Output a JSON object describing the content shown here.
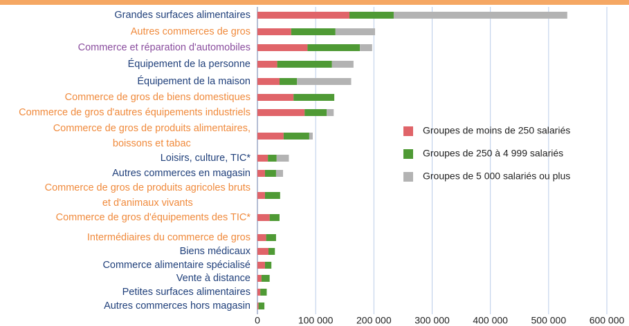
{
  "chart_data": {
    "type": "stacked_barh",
    "categories": [
      "Grandes surfaces alimentaires",
      "Autres commerces de gros",
      "Commerce et réparation d'automobiles",
      "Équipement de la personne",
      "Équipement de la maison",
      "Commerce de gros de biens domestiques",
      "Commerce de gros d'autres équipements industriels",
      "Commerce de gros de produits alimentaires,\nboissons et tabac",
      "Loisirs, culture, TIC*",
      "Autres commerces en magasin",
      "Commerce de gros de produits agricoles bruts\net d'animaux vivants",
      "Commerce de gros d'équipements des TIC*",
      "Intermédiaires du commerce de gros",
      "Biens médicaux",
      "Commerce alimentaire spécialisé",
      "Vente à distance",
      "Petites surfaces alimentaires",
      "Autres commerces hors magasin"
    ],
    "label_colors": [
      "#1f3f7a",
      "#f08a3c",
      "#8a4d9e",
      "#1f3f7a",
      "#1f3f7a",
      "#f08a3c",
      "#f08a3c",
      "#f08a3c",
      "#1f3f7a",
      "#1f3f7a",
      "#f08a3c",
      "#f08a3c",
      "#f08a3c",
      "#1f3f7a",
      "#1f3f7a",
      "#1f3f7a",
      "#1f3f7a",
      "#1f3f7a"
    ],
    "series": [
      {
        "name": "Groupes de moins de 250 salariés",
        "color": "#e06469",
        "values": [
          158000,
          58000,
          86000,
          34000,
          38000,
          62000,
          81000,
          45000,
          18000,
          13000,
          13000,
          21000,
          15000,
          19000,
          13000,
          7000,
          5000,
          2000
        ]
      },
      {
        "name": "Groupes de 250 à 4 999 salariés",
        "color": "#4f9a35",
        "values": [
          76000,
          76000,
          90000,
          94000,
          30000,
          70000,
          38000,
          44000,
          15000,
          19000,
          26000,
          17000,
          17000,
          11000,
          11000,
          14000,
          11000,
          10000
        ]
      },
      {
        "name": "Groupes de 5 000 salariés ou plus",
        "color": "#b3b3b3",
        "values": [
          298000,
          68000,
          21000,
          37000,
          93000,
          0,
          12000,
          6000,
          21000,
          12000,
          0,
          0,
          0,
          0,
          0,
          0,
          0,
          0
        ]
      }
    ],
    "xlim": [
      0,
      600000
    ],
    "xticks": [
      0,
      {
        "value": 100000,
        "label": "100 000"
      },
      {
        "value": 200000,
        "label": "200 000"
      },
      {
        "value": 300000,
        "label": "300 000"
      },
      {
        "value": 400000,
        "label": "400 000"
      },
      {
        "value": 500000,
        "label": "500 000"
      },
      {
        "value": 600000,
        "label": "600 000"
      }
    ],
    "grid": true,
    "legend": "right"
  }
}
